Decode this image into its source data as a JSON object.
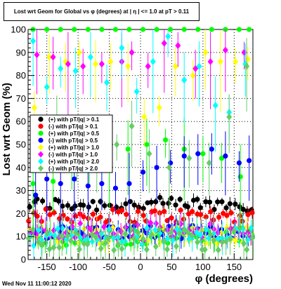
{
  "chart_data": {
    "type": "scatter",
    "title": "Lost wrt Geom for Global vs φ (degrees) at | η | <= 1.0 at pT > 0.11",
    "xlabel": "φ (degrees)",
    "ylabel": "Lost wrt Geom (%)",
    "xlim": [
      -180,
      180
    ],
    "ylim": [
      0,
      100
    ],
    "x_ticks": [
      "-150",
      "-100",
      "-50",
      "0",
      "50",
      "100",
      "150"
    ],
    "y_ticks": [
      "0",
      "10",
      "20",
      "30",
      "40",
      "50",
      "60",
      "70",
      "80",
      "90",
      "100"
    ],
    "grid": true,
    "legend_placement": "left-middle",
    "series": [
      {
        "name": "(+) with pT/|q| > 0.1",
        "marker": "circle",
        "color": "#000000",
        "level": 24,
        "spread": 3,
        "errbar": 2
      },
      {
        "name": "(-) with pT/|q| > 0.1",
        "marker": "circle",
        "color": "#ff0000",
        "level": 19,
        "spread": 3,
        "errbar": 2
      },
      {
        "name": "(+) with pT/|q| > 0.5",
        "marker": "circle",
        "color": "#00ff00",
        "level": 10,
        "spread": 4,
        "errbar": 3
      },
      {
        "name": "(-) with pT/|q| > 0.5",
        "marker": "circle",
        "color": "#0000ff",
        "level": 12,
        "spread": 3,
        "errbar": 3
      },
      {
        "name": "(+) with pT/|q| > 1.0",
        "marker": "diamond",
        "color": "#ffff00",
        "level": 11,
        "spread": 4,
        "errbar": 4
      },
      {
        "name": "(-) with pT/|q| > 1.0",
        "marker": "diamond",
        "color": "#ff00ff",
        "level": 12,
        "spread": 4,
        "errbar": 4
      },
      {
        "name": "(+) with pT/|q| > 2.0",
        "marker": "diamond",
        "color": "#00ffff",
        "level": 10,
        "spread": 4,
        "errbar": 5
      },
      {
        "name": "(-) with pT/|q| > 2.0",
        "marker": "diamond",
        "color": "#66cc66",
        "level": 9,
        "spread": 5,
        "errbar": 6
      }
    ],
    "upper_points": [
      {
        "series": 2,
        "x": [
          -172,
          -150,
          -128,
          -106,
          -84,
          -62,
          -40,
          -18,
          4,
          26,
          48,
          70,
          92,
          114,
          136,
          158,
          174
        ],
        "y": [
          100,
          100,
          100,
          100,
          100,
          100,
          100,
          100,
          100,
          100,
          100,
          100,
          100,
          100,
          100,
          100,
          100
        ]
      },
      {
        "series": 2,
        "x": [
          -172,
          -140,
          -110,
          -82,
          -50,
          -20,
          10,
          40,
          70,
          100,
          130,
          160
        ],
        "y": [
          33,
          34,
          40,
          42,
          44,
          48,
          50,
          52,
          48,
          46,
          44,
          36
        ]
      },
      {
        "series": 3,
        "x": [
          -168,
          -150,
          -128,
          -106,
          -84,
          -62,
          -40,
          -18,
          4,
          26,
          48,
          70,
          92,
          114,
          136,
          158,
          174
        ],
        "y": [
          28,
          35,
          33,
          35,
          32,
          33,
          31,
          33,
          38,
          40,
          42,
          45,
          46,
          48,
          45,
          42,
          43
        ]
      },
      {
        "series": 4,
        "x": [
          -170,
          -146,
          -120,
          -98,
          -72,
          -48,
          -20,
          6,
          30,
          56,
          84,
          104,
          128,
          152,
          172
        ],
        "y": [
          66,
          88,
          86,
          90,
          85,
          86,
          84,
          62,
          66,
          84,
          80,
          90,
          86,
          86,
          87
        ]
      },
      {
        "series": 5,
        "x": [
          -166,
          -140,
          -116,
          -92,
          -62,
          -30,
          -14,
          12,
          38,
          60,
          88,
          112,
          136,
          166
        ],
        "y": [
          89,
          88,
          85,
          84,
          85,
          86,
          90,
          84,
          94,
          93,
          83,
          86,
          91,
          90
        ]
      },
      {
        "series": 6,
        "x": [
          -172,
          -150,
          -128,
          -104,
          -80,
          -54,
          -30,
          -6,
          20,
          44,
          70,
          94,
          120,
          142,
          168
        ],
        "y": [
          95,
          75,
          83,
          82,
          88,
          77,
          92,
          73,
          86,
          97,
          78,
          84,
          67,
          64,
          85
        ]
      },
      {
        "series": 7,
        "x": [
          -166,
          -134,
          -102,
          -70,
          -38,
          -14,
          14,
          46,
          78,
          110,
          142,
          170
        ],
        "y": [
          54,
          60,
          44,
          48,
          50,
          58,
          46,
          40,
          44,
          42,
          62,
          84
        ]
      }
    ]
  },
  "legend_entries": [
    {
      "label": "(+) with pT/|q| > 0.1",
      "color": "#000000",
      "marker": "circle"
    },
    {
      "label": "(-) with pT/|q| > 0.1",
      "color": "#ff0000",
      "marker": "circle"
    },
    {
      "label": "(+) with pT/|q| > 0.5",
      "color": "#00ff00",
      "marker": "circle"
    },
    {
      "label": "(-) with pT/|q| > 0.5",
      "color": "#0000ff",
      "marker": "circle"
    },
    {
      "label": "(+) with pT/|q| > 1.0",
      "color": "#ffff00",
      "marker": "diamond"
    },
    {
      "label": "(-) with pT/|q| > 1.0",
      "color": "#ff00ff",
      "marker": "diamond"
    },
    {
      "label": "(+) with pT/|q| > 2.0",
      "color": "#00ffff",
      "marker": "diamond"
    },
    {
      "label": "(-) with pT/|q| > 2.0",
      "color": "#66cc66",
      "marker": "diamond"
    }
  ],
  "footer": {
    "timestamp": "Wed Nov 11 11:00:12 2020"
  }
}
